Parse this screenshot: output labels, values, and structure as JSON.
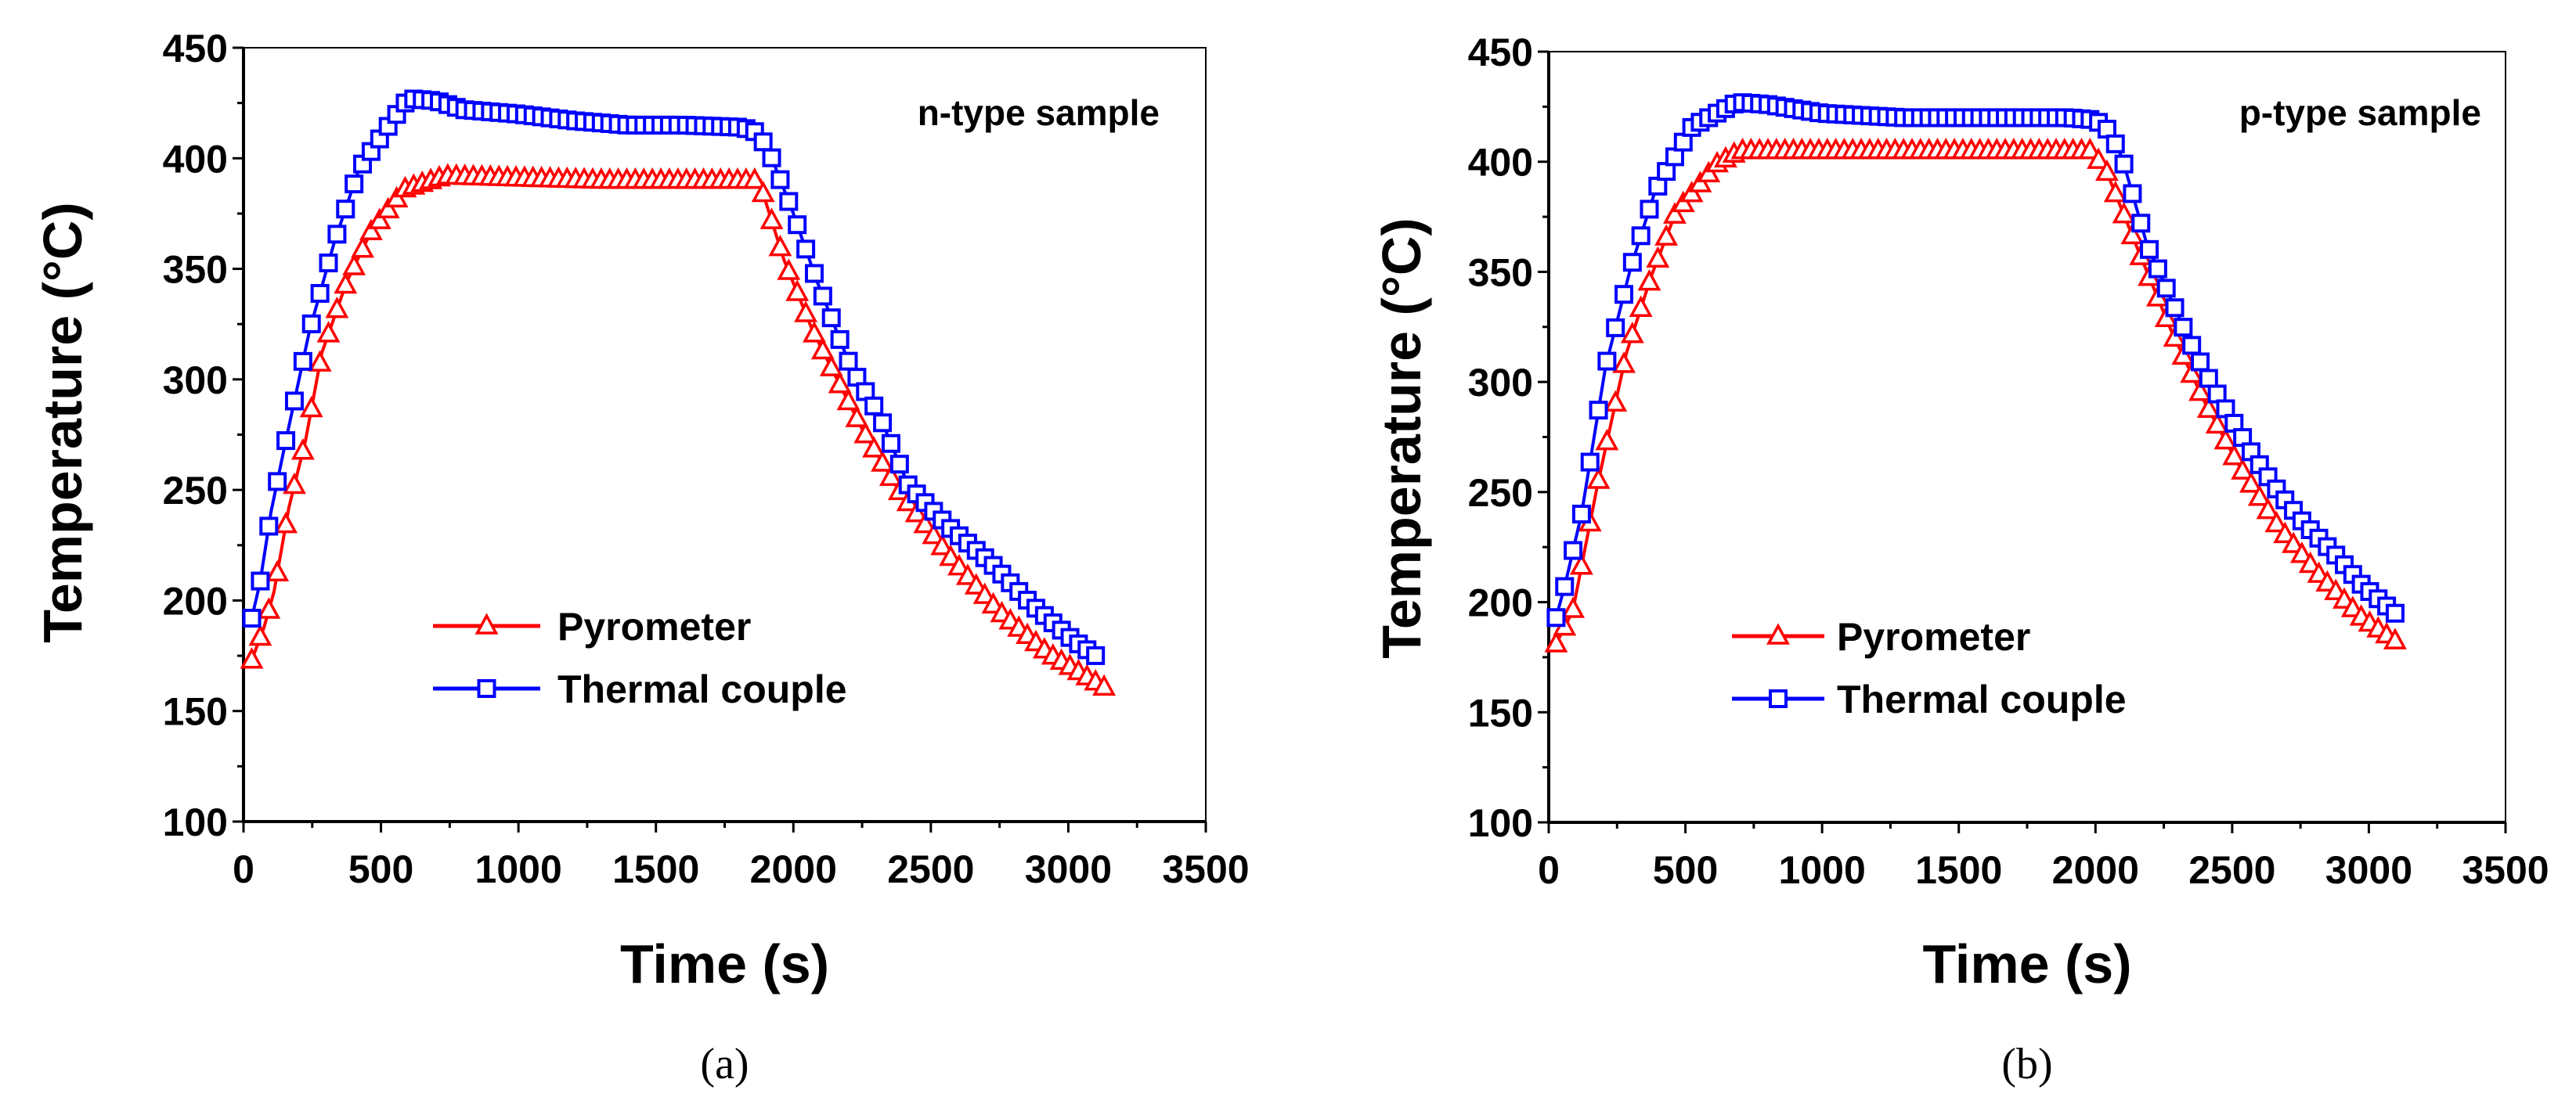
{
  "colors": {
    "pyrometer": "#ff0000",
    "thermal_couple": "#0000ff",
    "axis": "#000000"
  },
  "chart_data": [
    {
      "type": "line",
      "panel_label": "(a)",
      "annotation": "n-type sample",
      "xlabel": "Time (s)",
      "ylabel": "Temperature (°C)",
      "xlim": [
        0,
        3500
      ],
      "ylim": [
        100,
        450
      ],
      "xticks": [
        "0",
        "500",
        "1000",
        "1500",
        "2000",
        "2500",
        "3000",
        "3500"
      ],
      "yticks": [
        "100",
        "150",
        "200",
        "250",
        "300",
        "350",
        "400",
        "450"
      ],
      "grid": false,
      "legend_position": "center-left",
      "marker_interval_s": 31,
      "series": [
        {
          "name": "Pyrometer",
          "marker": "triangle",
          "color": "#ff0000",
          "x": [
            30,
            75,
            111,
            165,
            225,
            285,
            375,
            465,
            585,
            735,
            1000,
            1300,
            1600,
            1880,
            1890,
            1966,
            2070,
            2147,
            2252,
            2387,
            2568,
            2748,
            2928,
            3140
          ],
          "y": [
            173,
            188,
            204,
            242,
            272,
            312,
            344,
            367,
            386,
            392,
            391,
            390,
            390,
            390,
            384,
            354,
            322,
            303,
            277,
            249,
            220,
            195,
            176,
            160
          ]
        },
        {
          "name": "Thermal couple",
          "marker": "square",
          "color": "#0000ff",
          "x": [
            30,
            60,
            100,
            150,
            240,
            330,
            420,
            540,
            600,
            700,
            800,
            1000,
            1200,
            1400,
            1600,
            1815,
            1860,
            1906,
            1997,
            2087,
            2207,
            2312,
            2418,
            2568,
            2718,
            2868,
            3018,
            3123
          ],
          "y": [
            192,
            208,
            240,
            270,
            322,
            362,
            395,
            417,
            427,
            426,
            422,
            420,
            417,
            415,
            415,
            414,
            412,
            405,
            376,
            344,
            306,
            284,
            252,
            233,
            217,
            198,
            182,
            173
          ]
        }
      ]
    },
    {
      "type": "line",
      "panel_label": "(b)",
      "annotation": "p-type sample",
      "xlabel": "Time (s)",
      "ylabel": "Temperature (°C)",
      "xlim": [
        0,
        3500
      ],
      "ylim": [
        100,
        450
      ],
      "xticks": [
        "0",
        "500",
        "1000",
        "1500",
        "2000",
        "2500",
        "3000",
        "3500"
      ],
      "yticks": [
        "100",
        "150",
        "200",
        "250",
        "300",
        "350",
        "400",
        "450"
      ],
      "grid": false,
      "legend_position": "center-left",
      "marker_interval_s": 31,
      "series": [
        {
          "name": "Pyrometer",
          "marker": "triangle",
          "color": "#ff0000",
          "x": [
            27,
            88,
            178,
            284,
            375,
            465,
            616,
            700,
            1000,
            1400,
            1800,
            1980,
            2036,
            2097,
            2172,
            2278,
            2399,
            2520,
            2670,
            2821,
            2973,
            3124
          ],
          "y": [
            181,
            196,
            253,
            313,
            348,
            377,
            399,
            405,
            405,
            405,
            405,
            405,
            397,
            378,
            355,
            323,
            291,
            263,
            234,
            212,
            193,
            180
          ]
        },
        {
          "name": "Thermal couple",
          "marker": "square",
          "color": "#0000ff",
          "x": [
            27,
            60,
            120,
            208,
            300,
            390,
            525,
            690,
            800,
            1000,
            1300,
            1600,
            1900,
            2000,
            2050,
            2097,
            2187,
            2254,
            2338,
            2429,
            2489,
            2580,
            2670,
            2761,
            2882,
            2973,
            3124
          ],
          "y": [
            193,
            208,
            240,
            307,
            352,
            387,
            416,
            427,
            426,
            422,
            420,
            420,
            420,
            419,
            414,
            402,
            363,
            344,
            320,
            298,
            285,
            266,
            250,
            236,
            221,
            208,
            192
          ]
        }
      ]
    }
  ]
}
